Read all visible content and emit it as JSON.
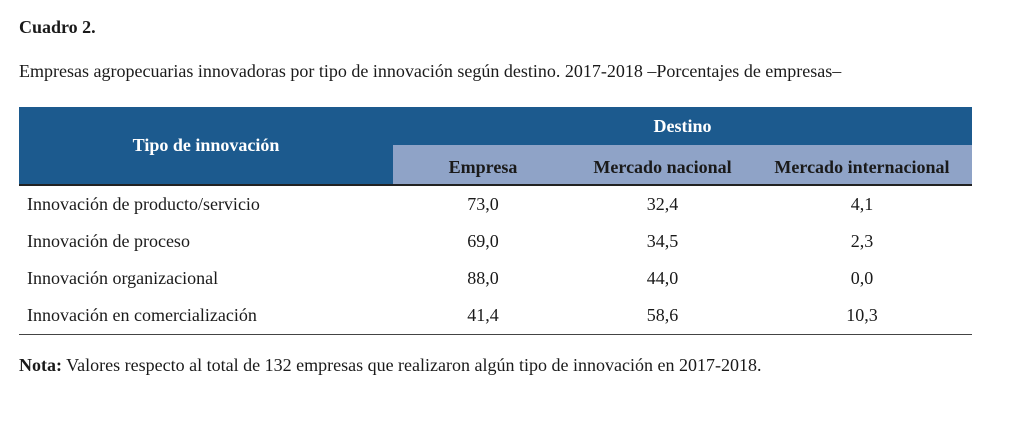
{
  "title": "Cuadro 2.",
  "subtitle": "Empresas agropecuarias innovadoras por tipo de innovación según destino. 2017-2018 –Porcentajes de empresas–",
  "table": {
    "row_header": "Tipo de innovación",
    "group_header": "Destino",
    "columns": [
      "Empresa",
      "Mercado nacional",
      "Mercado internacional"
    ],
    "rows": [
      {
        "label": "Innovación de producto/servicio",
        "values": [
          "73,0",
          "32,4",
          "4,1"
        ]
      },
      {
        "label": "Innovación de proceso",
        "values": [
          "69,0",
          "34,5",
          "2,3"
        ]
      },
      {
        "label": "Innovación organizacional",
        "values": [
          "88,0",
          "44,0",
          "0,0"
        ]
      },
      {
        "label": "Innovación en comercialización",
        "values": [
          "41,4",
          "58,6",
          "10,3"
        ]
      }
    ]
  },
  "note": {
    "label": "Nota:",
    "text": " Valores respecto al total de 132 empresas que realizaron algún tipo de innovación en 2017-2018."
  },
  "colors": {
    "header_dark": "#1c5a8e",
    "header_light": "#8fa3c7"
  }
}
